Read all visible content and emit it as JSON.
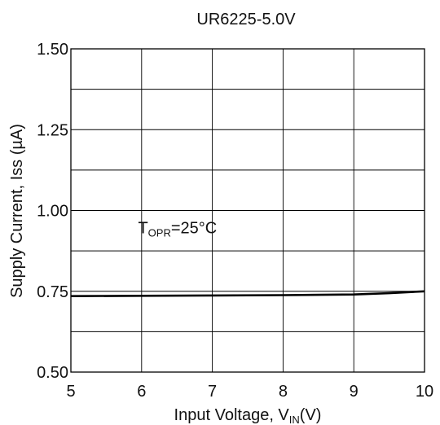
{
  "chart_data": {
    "type": "line",
    "title": "UR6225-5.0V",
    "xlabel": {
      "main": "Input Voltage, V",
      "sub": "IN",
      "tail": "(V)"
    },
    "ylabel": "Supply Current, Iss (µA)",
    "xlim": [
      5,
      10
    ],
    "ylim": [
      0.5,
      1.5
    ],
    "x_ticks": [
      "5",
      "6",
      "7",
      "8",
      "9",
      "10"
    ],
    "y_ticks": [
      "0.50",
      "0.75",
      "1.00",
      "1.25",
      "1.50"
    ],
    "grid": true,
    "annotation": {
      "main": "T",
      "sub": "OPR",
      "tail": "=25°C",
      "x": 5.95,
      "y": 0.93
    },
    "series": [
      {
        "x": [
          5,
          6,
          7,
          8,
          9,
          9.5,
          10
        ],
        "y": [
          0.735,
          0.736,
          0.737,
          0.738,
          0.74,
          0.744,
          0.75
        ]
      }
    ],
    "line_color": "#000000",
    "grid_color": "#000000"
  }
}
